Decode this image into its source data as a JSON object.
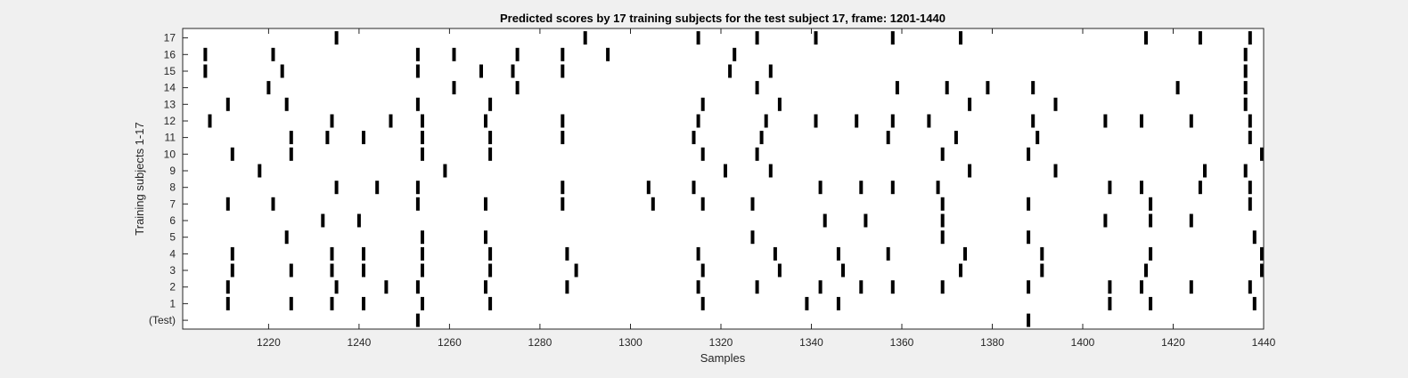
{
  "chart_data": {
    "type": "raster",
    "title": "Predicted scores by 17 training subjects for the test subject 17, frame: 1201-1440",
    "xlabel": "Samples",
    "ylabel": "Training subjects 1-17",
    "xlim": [
      1201,
      1440
    ],
    "xticks": [
      1220,
      1240,
      1260,
      1280,
      1300,
      1320,
      1340,
      1360,
      1380,
      1400,
      1420,
      1440
    ],
    "colors": {
      "mark": "#000000",
      "plot_bg": "#ffffff",
      "figure_bg": "#f0f0f0",
      "axis": "#262626"
    },
    "rows": [
      {
        "label": "(Test)",
        "events": [
          1253,
          1388
        ]
      },
      {
        "label": "1",
        "events": [
          1211,
          1225,
          1234,
          1241,
          1254,
          1269,
          1316,
          1339,
          1346,
          1406,
          1415,
          1438
        ]
      },
      {
        "label": "2",
        "events": [
          1211,
          1235,
          1246,
          1253,
          1268,
          1286,
          1315,
          1328,
          1342,
          1351,
          1358,
          1369,
          1388,
          1406,
          1413,
          1424,
          1437
        ]
      },
      {
        "label": "3",
        "events": [
          1212,
          1225,
          1234,
          1241,
          1254,
          1269,
          1288,
          1316,
          1333,
          1347,
          1373,
          1391,
          1414,
          1440
        ]
      },
      {
        "label": "4",
        "events": [
          1212,
          1234,
          1241,
          1254,
          1269,
          1286,
          1315,
          1332,
          1346,
          1357,
          1374,
          1391,
          1415,
          1440
        ]
      },
      {
        "label": "5",
        "events": [
          1224,
          1254,
          1268,
          1327,
          1369,
          1388,
          1438
        ]
      },
      {
        "label": "6",
        "events": [
          1232,
          1240,
          1343,
          1352,
          1369,
          1405,
          1415,
          1424
        ]
      },
      {
        "label": "7",
        "events": [
          1211,
          1221,
          1253,
          1268,
          1285,
          1305,
          1316,
          1327,
          1369,
          1388,
          1415,
          1437
        ]
      },
      {
        "label": "8",
        "events": [
          1235,
          1244,
          1253,
          1285,
          1304,
          1314,
          1342,
          1351,
          1358,
          1368,
          1406,
          1413,
          1426,
          1437
        ]
      },
      {
        "label": "9",
        "events": [
          1218,
          1259,
          1321,
          1331,
          1375,
          1394,
          1427,
          1436
        ]
      },
      {
        "label": "10",
        "events": [
          1212,
          1225,
          1254,
          1269,
          1316,
          1328,
          1369,
          1388,
          1440
        ]
      },
      {
        "label": "11",
        "events": [
          1225,
          1233,
          1241,
          1254,
          1269,
          1285,
          1314,
          1329,
          1357,
          1372,
          1390,
          1437
        ]
      },
      {
        "label": "12",
        "events": [
          1207,
          1234,
          1247,
          1254,
          1268,
          1285,
          1315,
          1330,
          1341,
          1350,
          1358,
          1366,
          1389,
          1405,
          1413,
          1424,
          1437
        ]
      },
      {
        "label": "13",
        "events": [
          1211,
          1224,
          1253,
          1269,
          1316,
          1333,
          1375,
          1394,
          1436
        ]
      },
      {
        "label": "14",
        "events": [
          1220,
          1261,
          1275,
          1328,
          1359,
          1370,
          1379,
          1389,
          1421,
          1436
        ]
      },
      {
        "label": "15",
        "events": [
          1206,
          1223,
          1253,
          1267,
          1274,
          1285,
          1322,
          1331,
          1436
        ]
      },
      {
        "label": "16",
        "events": [
          1206,
          1221,
          1253,
          1261,
          1275,
          1285,
          1295,
          1323,
          1436
        ]
      },
      {
        "label": "17",
        "events": [
          1235,
          1290,
          1315,
          1328,
          1341,
          1358,
          1373,
          1414,
          1426,
          1437
        ]
      }
    ]
  }
}
